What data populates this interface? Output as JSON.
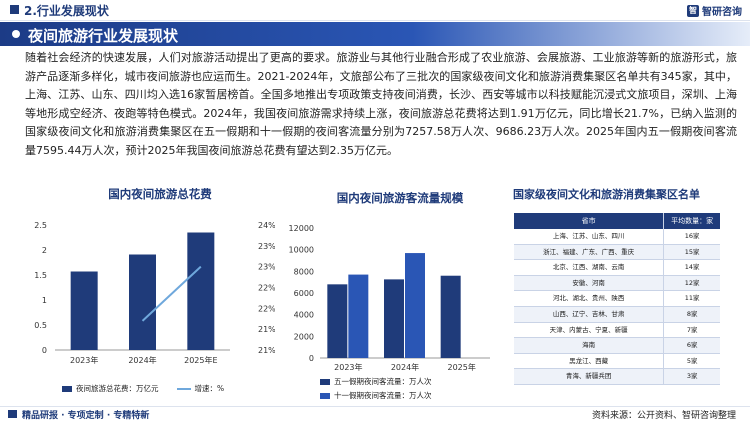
{
  "header": {
    "section_title": "2.行业发展现状",
    "brand": "智研咨询",
    "brand_logo": "智"
  },
  "banner": {
    "title": "夜间旅游行业发展现状"
  },
  "paragraph": "随着社会经济的快速发展，人们对旅游活动提出了更高的要求。旅游业与其他行业融合形成了农业旅游、会展旅游、工业旅游等新的旅游形式，旅游产品逐渐多样化，城市夜间旅游也应运而生。2021-2024年，文旅部公布了三批次的国家级夜间文化和旅游消费集聚区名单共有345家，其中，上海、江苏、山东、四川均入选16家暂居榜首。全国多地推出专项政策支持夜间消费，长沙、西安等城市以科技赋能沉浸式文旅项目，深圳、上海等地形成空经济、夜跑等特色模式。2024年，我国夜间旅游需求持续上涨，夜间旅游总花费将达到1.91万亿元，同比增长21.7%，已纳入监测的国家级夜间文化和旅游消费集聚区在五一假期和十一假期的夜间客流量分别为7257.58万人次、9686.23万人次。2025年国内五一假期夜间客流量7595.44万人次，预计2025年我国夜间旅游总花费有望达到2.35万亿元。",
  "chart_data": [
    {
      "type": "bar",
      "title": "国内夜间旅游总花费",
      "categories": [
        "2023年",
        "2024年",
        "2025年E"
      ],
      "series": [
        {
          "name": "夜间旅游总花费：万亿元",
          "values": [
            1.57,
            1.91,
            2.35
          ],
          "color": "#1f3b7a"
        },
        {
          "name": "增速：%",
          "type": "line",
          "values": [
            null,
            21.7,
            23.0
          ],
          "color": "#6fa8dc"
        }
      ],
      "ylim": [
        0,
        2.5
      ],
      "yticks": [
        "0",
        "0.5",
        "1",
        "1.5",
        "2",
        "2.5"
      ],
      "y2lim": [
        21,
        24
      ],
      "y2ticks": [
        "21%",
        "21%",
        "22%",
        "22%",
        "23%",
        "23%",
        "24%"
      ],
      "legend": "bottom"
    },
    {
      "type": "bar",
      "title": "国内夜间旅游客流量规模",
      "categories": [
        "2023年",
        "2024年",
        "2025年"
      ],
      "series": [
        {
          "name": "五一假期夜间客流量：万人次",
          "values": [
            6800,
            7257.58,
            7595.44
          ],
          "color": "#1f3b7a"
        },
        {
          "name": "十一假期夜间客流量：万人次",
          "values": [
            7700,
            9686.23,
            null
          ],
          "color": "#2a56b5"
        }
      ],
      "ylim": [
        0,
        12000
      ],
      "yticks": [
        "0",
        "2000",
        "4000",
        "6000",
        "8000",
        "10000",
        "12000"
      ],
      "legend": "bottom"
    }
  ],
  "table": {
    "title": "国家级夜间文化和旅游消费集聚区名单",
    "headers": [
      "省市",
      "平均数量：家"
    ],
    "rows": [
      [
        "上海、江苏、山东、四川",
        "16家"
      ],
      [
        "浙江、福建、广东、广西、重庆",
        "15家"
      ],
      [
        "北京、江西、湖南、云南",
        "14家"
      ],
      [
        "安徽、河南",
        "12家"
      ],
      [
        "河北、湖北、贵州、陕西",
        "11家"
      ],
      [
        "山西、辽宁、吉林、甘肃",
        "8家"
      ],
      [
        "天津、内蒙古、宁夏、新疆",
        "7家"
      ],
      [
        "海南",
        "6家"
      ],
      [
        "黑龙江、西藏",
        "5家"
      ],
      [
        "青海、新疆兵团",
        "3家"
      ]
    ]
  },
  "footer": {
    "left": "精品研报 · 专项定制 · 专精特新",
    "right": "资料来源：公开资料、智研咨询整理"
  }
}
